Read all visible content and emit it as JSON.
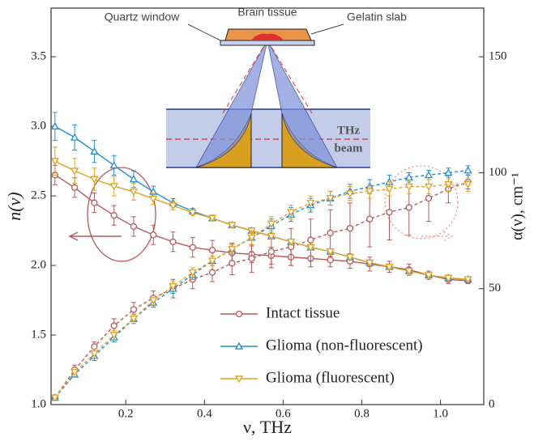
{
  "chart_data": {
    "type": "line",
    "xlabel": "ν, THz",
    "ylabel": "n(ν)",
    "y2label": "α(ν), cm⁻¹",
    "xlim": [
      0.01,
      1.11
    ],
    "ylim": [
      1.0,
      3.85
    ],
    "y2lim": [
      0,
      171
    ],
    "xticks": [
      0.2,
      0.4,
      0.6,
      0.8,
      {
        "value": 1,
        "label": "1.0"
      }
    ],
    "yticks": [
      {
        "value": 1,
        "label": "1.0"
      },
      1.5,
      {
        "value": 2,
        "label": "2.0"
      },
      2.5,
      {
        "value": 3,
        "label": "3.0"
      },
      3.5
    ],
    "y2ticks": [
      0,
      50,
      100,
      150
    ],
    "x": [
      0.02,
      0.07,
      0.12,
      0.17,
      0.22,
      0.27,
      0.32,
      0.37,
      0.42,
      0.47,
      0.52,
      0.57,
      0.62,
      0.67,
      0.72,
      0.77,
      0.82,
      0.87,
      0.92,
      0.97,
      1.02,
      1.07
    ],
    "series": [
      {
        "name": "Intact tissue",
        "color": "#b5585a",
        "marker": "circle",
        "values": [
          2.65,
          2.56,
          2.45,
          2.36,
          2.28,
          2.22,
          2.17,
          2.13,
          2.11,
          2.09,
          2.08,
          2.07,
          2.06,
          2.05,
          2.04,
          2.03,
          2.01,
          1.99,
          1.97,
          1.93,
          1.9,
          1.89
        ],
        "errors": [
          0.07,
          0.07,
          0.07,
          0.07,
          0.07,
          0.07,
          0.07,
          0.07,
          0.07,
          0.07,
          0.06,
          0.06,
          0.06,
          0.06,
          0.05,
          0.05,
          0.05,
          0.04,
          0.04,
          0.03,
          0.03,
          0.02
        ],
        "alpha_values": [
          3,
          15,
          25,
          34,
          41,
          46,
          50,
          54,
          57,
          61,
          63,
          66,
          68,
          71,
          74,
          76,
          80,
          83,
          85,
          89,
          93,
          96
        ],
        "alpha_errors": [
          1,
          2,
          2,
          3,
          3,
          3,
          4,
          4,
          4,
          5,
          6,
          7,
          8,
          9,
          10,
          11,
          12,
          12,
          12,
          10,
          6,
          3
        ]
      },
      {
        "name": "Glioma (non-fluorescent)",
        "color": "#1f8dd6",
        "marker": "triangle-up",
        "values": [
          3.0,
          2.92,
          2.82,
          2.72,
          2.62,
          2.53,
          2.45,
          2.39,
          2.34,
          2.29,
          2.25,
          2.21,
          2.17,
          2.13,
          2.1,
          2.06,
          2.02,
          1.99,
          1.96,
          1.93,
          1.91,
          1.9
        ],
        "errors": [
          0.1,
          0.09,
          0.08,
          0.07,
          0.06,
          0.04,
          0.03,
          0.02,
          0.02,
          0.02,
          0.02,
          0.02,
          0.02,
          0.02,
          0.02,
          0.02,
          0.02,
          0.02,
          0.02,
          0.01,
          0.01,
          0.01
        ],
        "alpha_values": [
          3,
          13,
          21,
          29,
          37,
          44,
          50,
          56,
          62,
          67,
          72,
          77,
          82,
          86,
          89,
          92,
          94,
          96,
          98,
          99,
          100,
          101
        ],
        "alpha_errors": [
          1,
          1,
          2,
          2,
          2,
          2,
          2,
          2,
          2,
          2,
          3,
          3,
          3,
          3,
          3,
          3,
          3,
          3,
          2,
          2,
          2,
          2
        ]
      },
      {
        "name": "Glioma (fluorescent)",
        "color": "#e0a020",
        "marker": "triangle-down",
        "values": [
          2.75,
          2.68,
          2.62,
          2.57,
          2.53,
          2.48,
          2.43,
          2.38,
          2.34,
          2.29,
          2.25,
          2.21,
          2.17,
          2.13,
          2.1,
          2.06,
          2.02,
          1.99,
          1.96,
          1.93,
          1.91,
          1.9
        ],
        "errors": [
          0.1,
          0.09,
          0.08,
          0.07,
          0.06,
          0.04,
          0.03,
          0.02,
          0.02,
          0.02,
          0.02,
          0.02,
          0.02,
          0.02,
          0.02,
          0.02,
          0.02,
          0.02,
          0.02,
          0.01,
          0.01,
          0.01
        ],
        "alpha_values": [
          3,
          14,
          22,
          30,
          37,
          45,
          51,
          57,
          62,
          67,
          72,
          78,
          83,
          87,
          89,
          91,
          92,
          93,
          94,
          94,
          95,
          95
        ],
        "alpha_errors": [
          1,
          1,
          2,
          2,
          2,
          2,
          2,
          2,
          2,
          2,
          3,
          3,
          3,
          3,
          3,
          3,
          3,
          3,
          3,
          3,
          3,
          3
        ]
      }
    ]
  },
  "inset": {
    "quartz_window": "Quartz window",
    "brain_tissue": "Brain tissue",
    "gelatin_slab": "Gelatin slab",
    "beam_line1": "THz",
    "beam_line2": "beam"
  }
}
